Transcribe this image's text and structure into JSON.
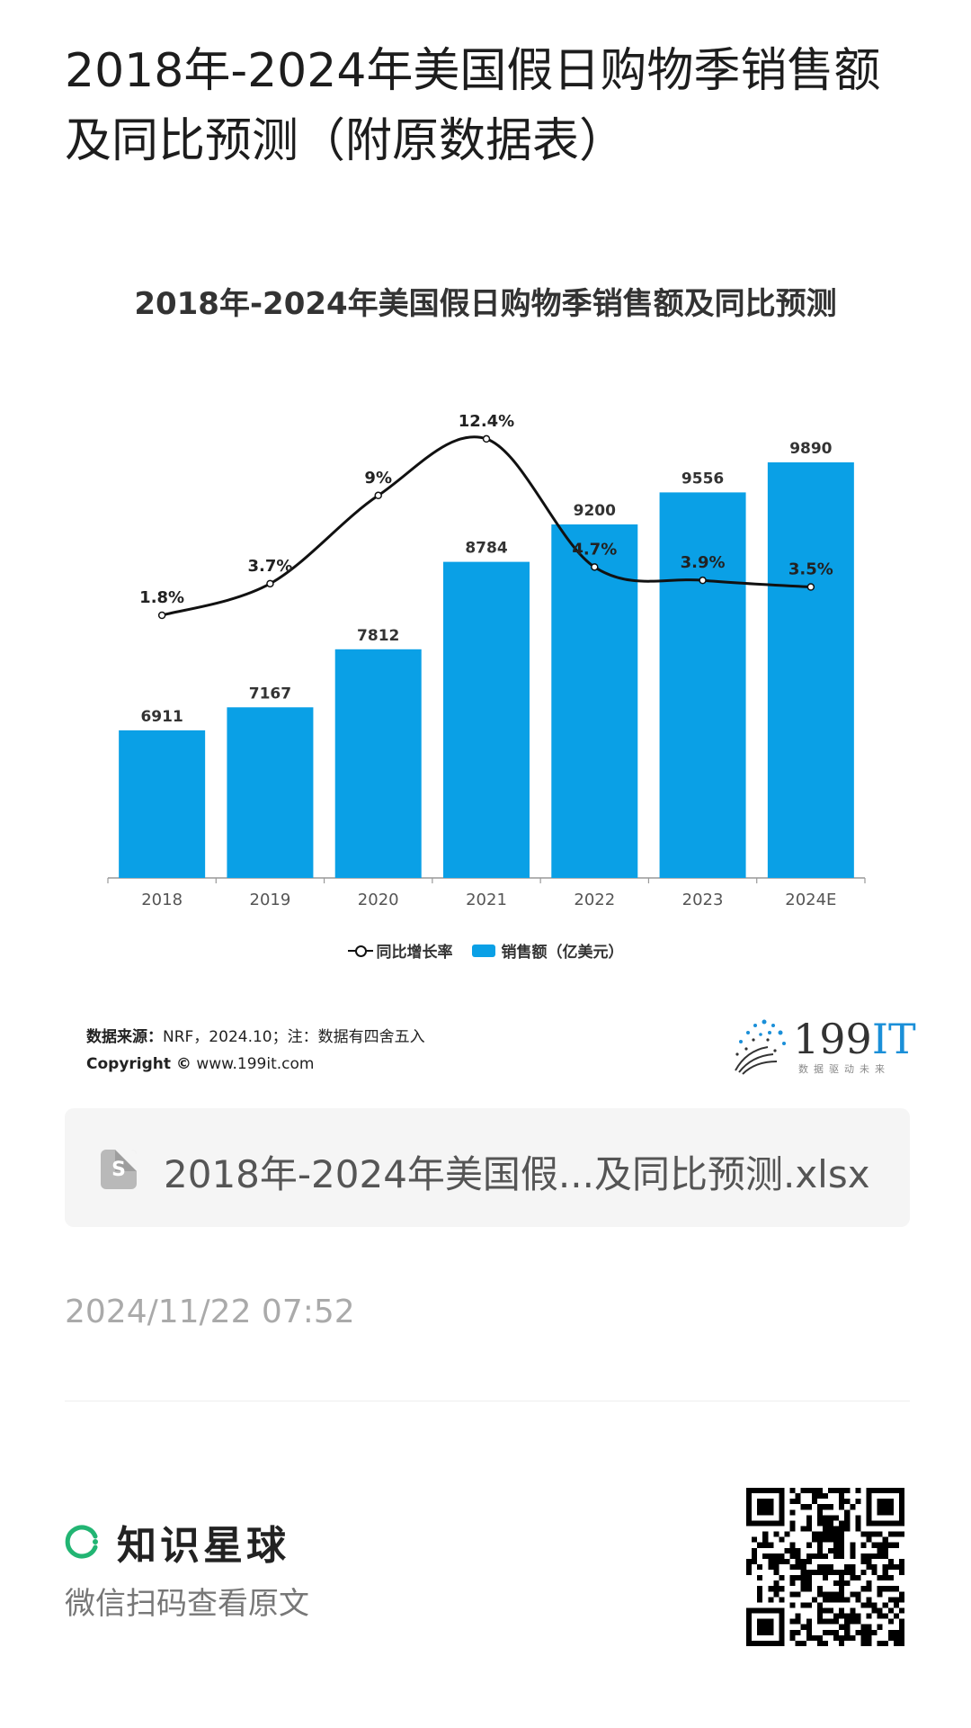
{
  "page": {
    "title": "2018年-2024年美国假日购物季销售额及同比预测（附原数据表）"
  },
  "chart_data": {
    "type": "bar",
    "title": "2018年-2024年美国假日购物季销售额及同比预测",
    "categories": [
      "2018",
      "2019",
      "2020",
      "2021",
      "2022",
      "2023",
      "2024E"
    ],
    "series": [
      {
        "name": "销售额（亿美元）",
        "type": "bar",
        "values": [
          6911,
          7167,
          7812,
          8784,
          9200,
          9556,
          9890
        ],
        "labels": [
          "6911",
          "7167",
          "7812",
          "8784",
          "9200",
          "9556",
          "9890"
        ]
      },
      {
        "name": "同比增长率",
        "type": "line",
        "values": [
          1.8,
          3.7,
          9,
          12.4,
          4.7,
          3.9,
          3.5
        ],
        "labels": [
          "1.8%",
          "3.7%",
          "9%",
          "12.4%",
          "4.7%",
          "3.9%",
          "3.5%"
        ]
      }
    ],
    "legend": {
      "line_label": "同比增长率",
      "bar_label": "销售额（亿美元）",
      "placement": "bottom"
    },
    "grid": false,
    "colors": {
      "bar": "#0aa0e6",
      "line": "#111111"
    }
  },
  "source": {
    "label": "数据来源：",
    "text": "NRF，2024.10；注：数据有四舍五入",
    "copyright_label": "Copyright ©",
    "copyright_text": "www.199it.com"
  },
  "logo": {
    "main": "199",
    "accent": "IT",
    "sub": "数据驱动未来"
  },
  "file": {
    "icon": "spreadsheet-icon",
    "icon_letter": "S",
    "name": "2018年-2024年美国假...及同比预测.xlsx"
  },
  "timestamp": "2024/11/22 07:52",
  "footer": {
    "brand_name": "知识星球",
    "subtitle": "微信扫码查看原文",
    "brand_color": "#22b573"
  }
}
